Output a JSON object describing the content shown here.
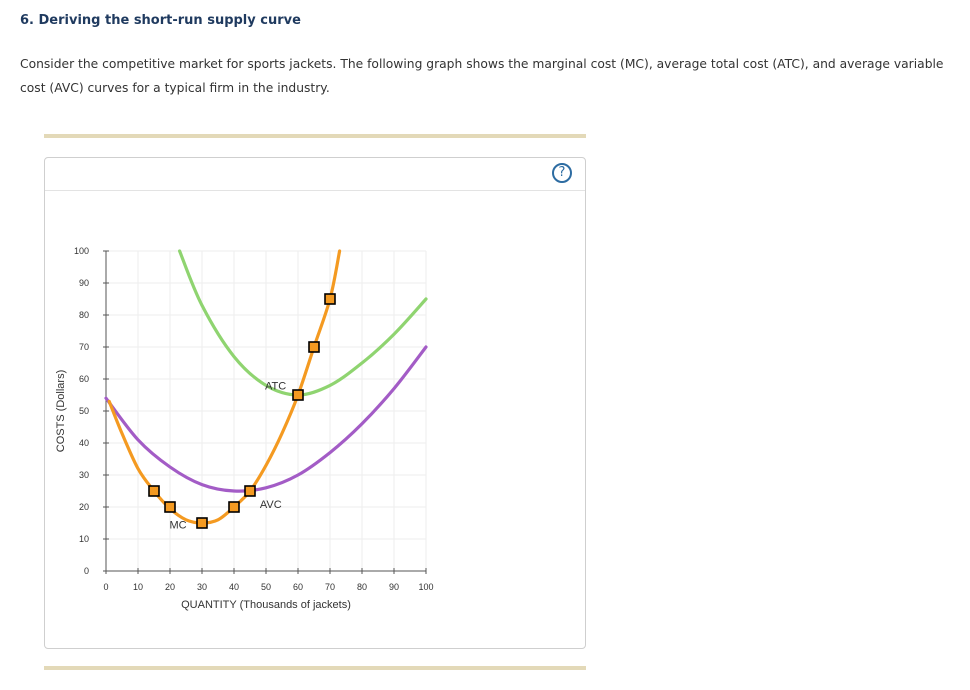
{
  "question": {
    "title": "6. Deriving the short-run supply curve",
    "text": "Consider the competitive market for sports jackets. The following graph shows the marginal cost (MC), average total cost (ATC), and average variable cost (AVC) curves for a typical firm in the industry."
  },
  "help_icon": {
    "glyph": "?",
    "icon": "question-circle-icon",
    "color": "#2d6ca2"
  },
  "chart_data": {
    "type": "line",
    "xlabel": "QUANTITY (Thousands of jackets)",
    "ylabel": "COSTS (Dollars)",
    "xlim": [
      0,
      100
    ],
    "ylim": [
      0,
      100
    ],
    "xticks": [
      0,
      10,
      20,
      30,
      40,
      50,
      60,
      70,
      80,
      90,
      100
    ],
    "yticks": [
      0,
      10,
      20,
      30,
      40,
      50,
      60,
      70,
      80,
      90,
      100
    ],
    "grid": true,
    "series": [
      {
        "name": "MC",
        "color": "#f49a21",
        "label": {
          "x": 22.5,
          "y": 14.5
        },
        "points": [
          [
            1,
            53
          ],
          [
            5,
            43
          ],
          [
            10,
            32
          ],
          [
            15,
            25
          ],
          [
            20,
            19.5
          ],
          [
            25,
            16
          ],
          [
            30,
            15
          ],
          [
            35,
            16
          ],
          [
            40,
            20
          ],
          [
            45,
            25
          ],
          [
            50,
            33
          ],
          [
            55,
            43
          ],
          [
            60,
            55
          ],
          [
            65,
            70
          ],
          [
            70,
            85
          ],
          [
            73,
            100
          ]
        ]
      },
      {
        "name": "ATC",
        "color": "#8fd470",
        "label": {
          "x": 53,
          "y": 58
        },
        "points": [
          [
            23,
            100
          ],
          [
            30,
            83
          ],
          [
            40,
            67
          ],
          [
            50,
            58
          ],
          [
            60,
            55
          ],
          [
            70,
            58
          ],
          [
            80,
            65
          ],
          [
            90,
            74
          ],
          [
            100,
            85
          ]
        ]
      },
      {
        "name": "AVC",
        "color": "#a35cc6",
        "label": {
          "x": 51.5,
          "y": 21
        },
        "points": [
          [
            0,
            54
          ],
          [
            10,
            41
          ],
          [
            20,
            32.5
          ],
          [
            30,
            27
          ],
          [
            40,
            25
          ],
          [
            50,
            26
          ],
          [
            60,
            30
          ],
          [
            70,
            37
          ],
          [
            80,
            46
          ],
          [
            90,
            57
          ],
          [
            100,
            70
          ]
        ]
      }
    ],
    "markers": {
      "color": "#f49a21",
      "stroke": "#000000",
      "points": [
        [
          15,
          25
        ],
        [
          20,
          20
        ],
        [
          30,
          15
        ],
        [
          40,
          20
        ],
        [
          45,
          25
        ],
        [
          60,
          55
        ],
        [
          65,
          70
        ],
        [
          70,
          85
        ]
      ]
    }
  }
}
